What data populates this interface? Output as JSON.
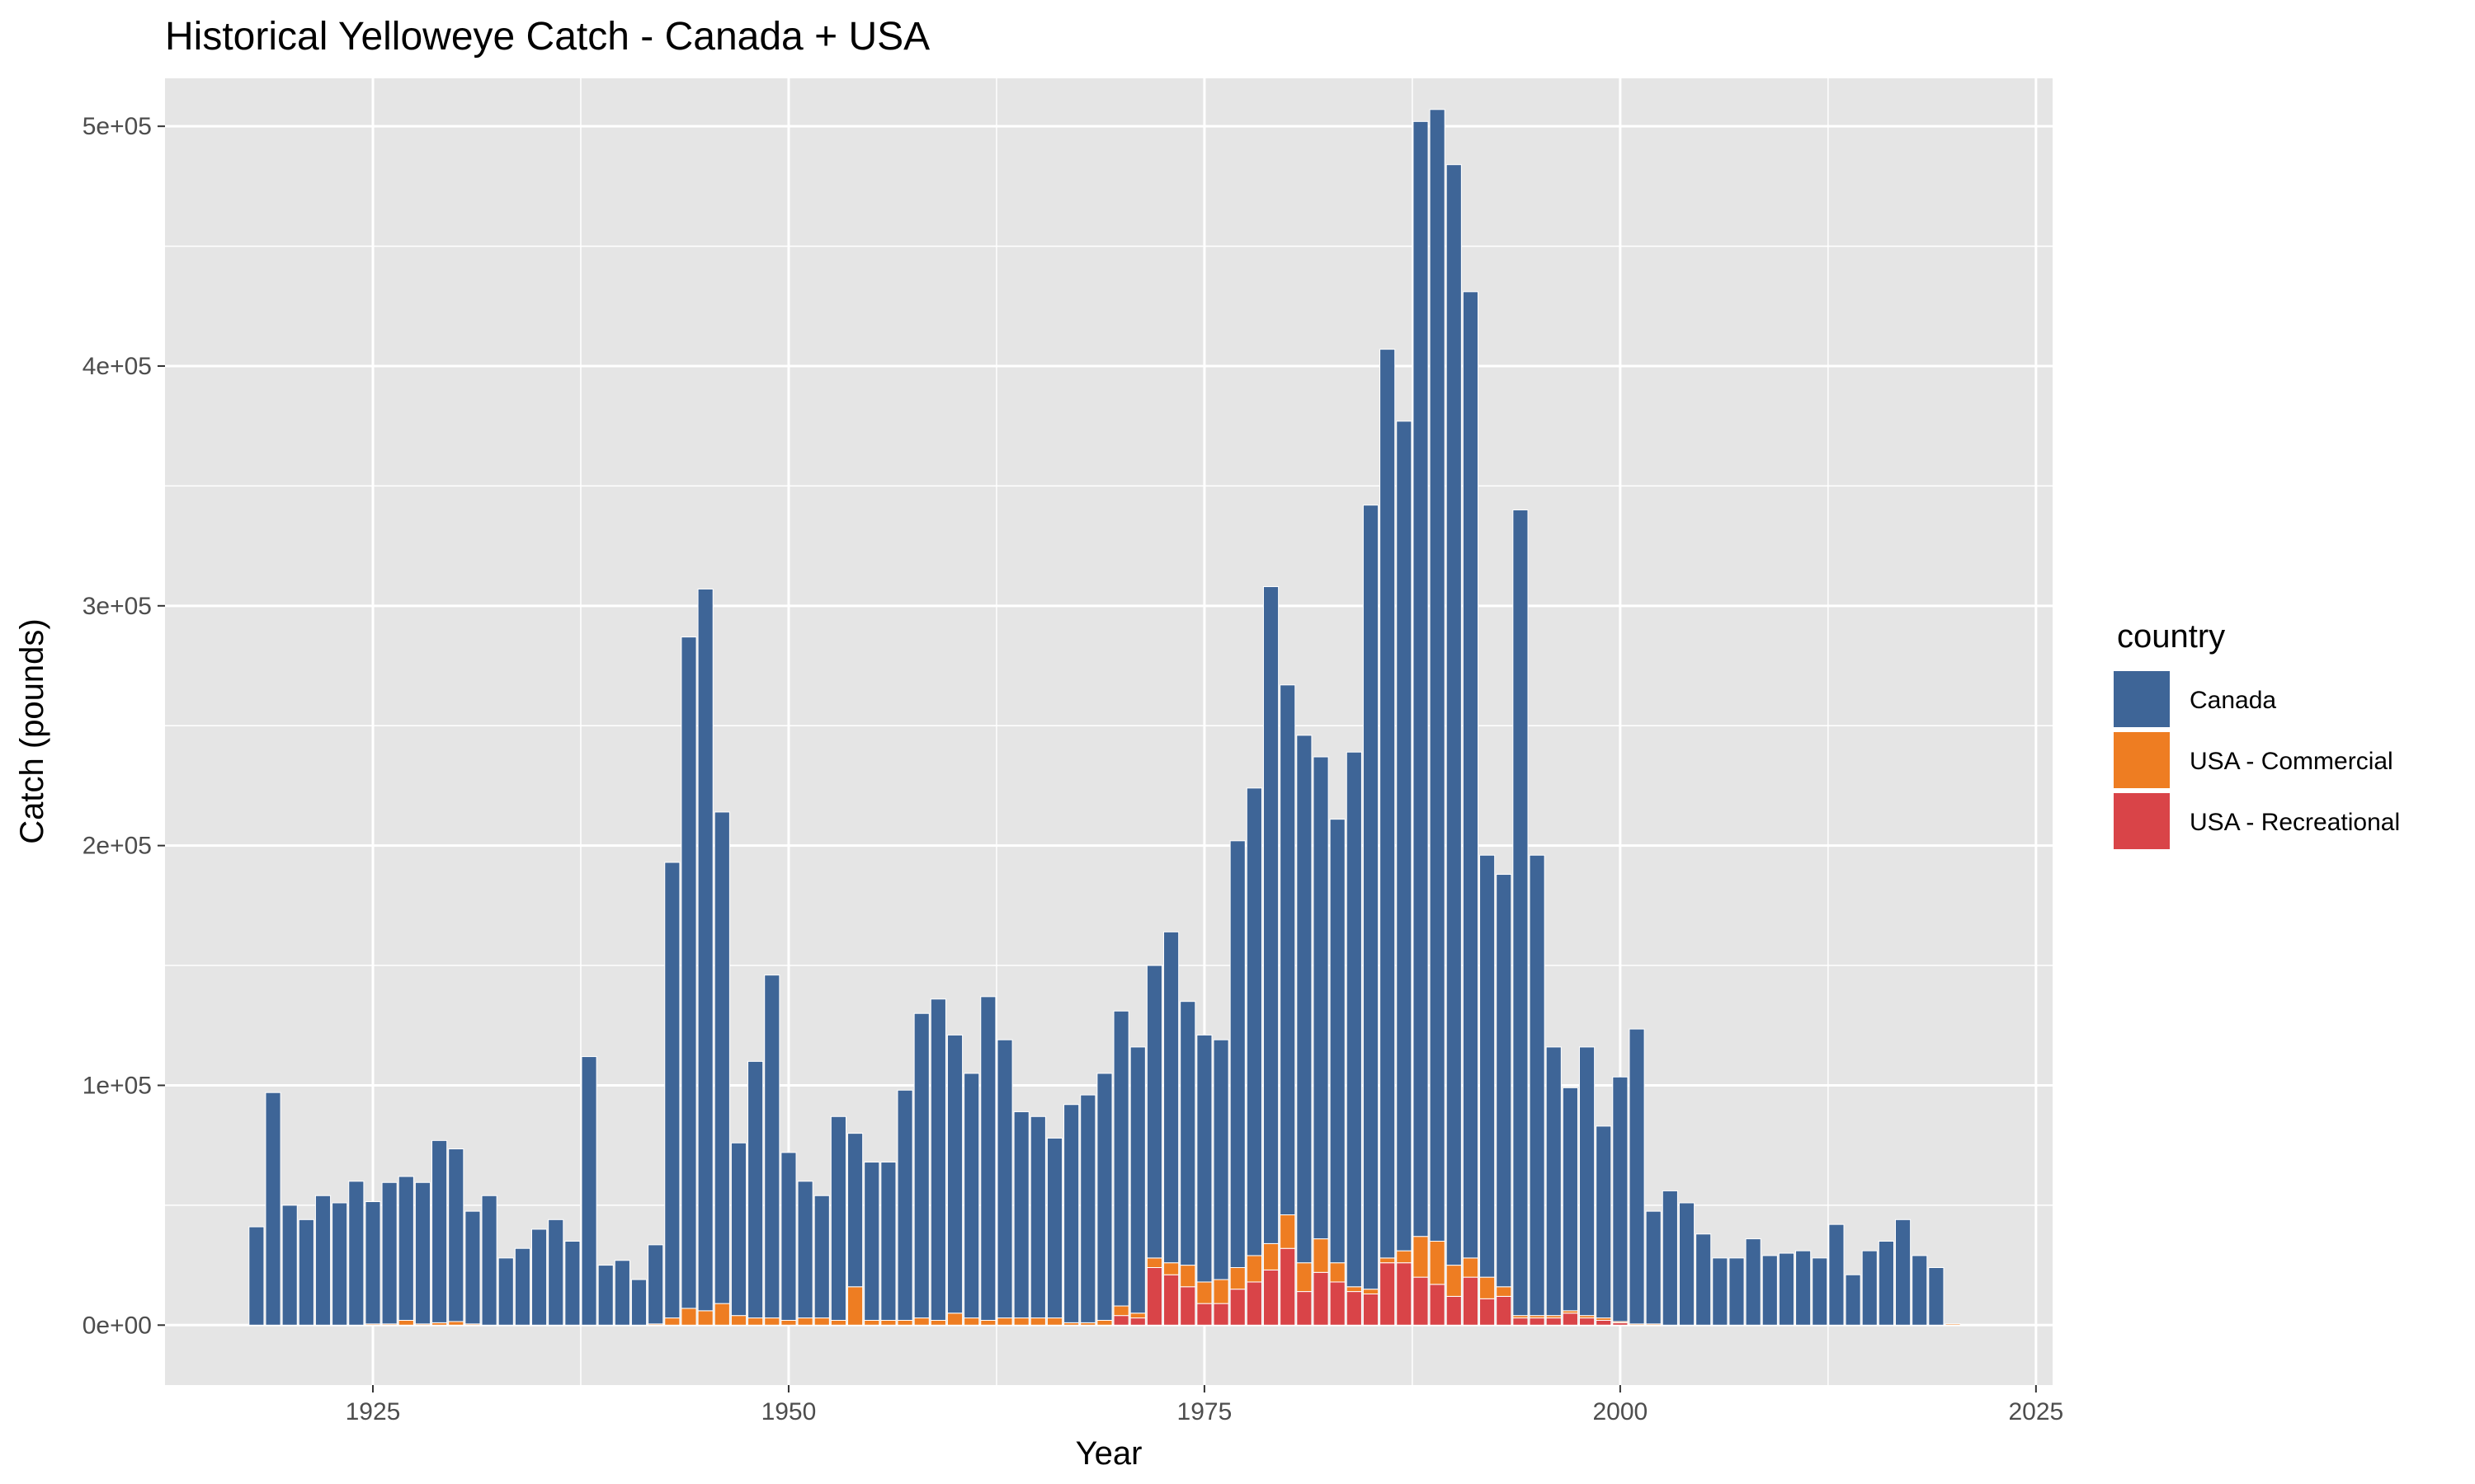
{
  "chart_data": {
    "type": "bar",
    "stacked": true,
    "title": "Historical Yelloweye Catch - Canada + USA",
    "xlabel": "Year",
    "ylabel": "Catch (pounds)",
    "xlim": [
      1912.5,
      2026
    ],
    "ylim": [
      -25000,
      520000
    ],
    "x_ticks": [
      1925,
      1950,
      1975,
      2000,
      2025
    ],
    "x_tick_labels": [
      "1925",
      "1950",
      "1975",
      "2000",
      "2025"
    ],
    "y_ticks": [
      0,
      100000,
      200000,
      300000,
      400000,
      500000
    ],
    "y_tick_labels": [
      "0e+00",
      "1e+05",
      "2e+05",
      "3e+05",
      "4e+05",
      "5e+05"
    ],
    "grid": true,
    "legend": {
      "title": "country",
      "position": "right"
    },
    "colors": {
      "Canada": "#3e6597",
      "USA - Commercial": "#ee7d22",
      "USA - Recreational": "#d94448",
      "panel": "#e5e5e5",
      "grid": "#ffffff"
    },
    "stack_order": [
      "USA - Recreational",
      "USA - Commercial",
      "Canada"
    ],
    "years": [
      1918,
      1919,
      1920,
      1921,
      1922,
      1923,
      1924,
      1925,
      1926,
      1927,
      1928,
      1929,
      1930,
      1931,
      1932,
      1933,
      1934,
      1935,
      1936,
      1937,
      1938,
      1939,
      1940,
      1941,
      1942,
      1943,
      1944,
      1945,
      1946,
      1947,
      1948,
      1949,
      1950,
      1951,
      1952,
      1953,
      1954,
      1955,
      1956,
      1957,
      1958,
      1959,
      1960,
      1961,
      1962,
      1963,
      1964,
      1965,
      1966,
      1967,
      1968,
      1969,
      1970,
      1971,
      1972,
      1973,
      1974,
      1975,
      1976,
      1977,
      1978,
      1979,
      1980,
      1981,
      1982,
      1983,
      1984,
      1985,
      1986,
      1987,
      1988,
      1989,
      1990,
      1991,
      1992,
      1993,
      1994,
      1995,
      1996,
      1997,
      1998,
      1999,
      2000,
      2001,
      2002,
      2003,
      2004,
      2005,
      2006,
      2007,
      2008,
      2009,
      2010,
      2011,
      2012,
      2013,
      2014,
      2015,
      2016,
      2017,
      2018,
      2019,
      2020
    ],
    "series": [
      {
        "name": "Canada",
        "values": [
          41000,
          97000,
          50000,
          44000,
          54000,
          51000,
          60000,
          51000,
          59000,
          60000,
          59000,
          76000,
          72000,
          47000,
          54000,
          28000,
          32000,
          40000,
          44000,
          35000,
          112000,
          25000,
          27000,
          19000,
          33000,
          190000,
          280000,
          301000,
          205000,
          72000,
          107000,
          143000,
          70000,
          57000,
          51000,
          85000,
          64000,
          66000,
          66000,
          96000,
          127000,
          134000,
          116000,
          102000,
          135000,
          116000,
          86000,
          84000,
          75000,
          91000,
          95000,
          103000,
          123000,
          111000,
          122000,
          138000,
          110000,
          103000,
          100000,
          178000,
          195000,
          274000,
          221000,
          220000,
          201000,
          185000,
          223000,
          327000,
          379000,
          346000,
          465000,
          472000,
          459000,
          403000,
          176000,
          172000,
          336000,
          192000,
          112000,
          93000,
          112000,
          80000,
          102000,
          123000,
          47000,
          56000,
          51000,
          38000,
          28000,
          28000,
          36000,
          29000,
          30000,
          31000,
          28000,
          42000,
          21000,
          31000,
          35000,
          44000,
          29000,
          24000,
          0
        ]
      },
      {
        "name": "USA - Commercial",
        "values": [
          0,
          0,
          0,
          0,
          0,
          0,
          0,
          500,
          500,
          2000,
          500,
          1000,
          1500,
          500,
          0,
          0,
          0,
          0,
          0,
          0,
          0,
          0,
          0,
          0,
          500,
          3000,
          7000,
          6000,
          9000,
          4000,
          3000,
          3000,
          2000,
          3000,
          3000,
          2000,
          16000,
          2000,
          2000,
          2000,
          3000,
          2000,
          5000,
          3000,
          2000,
          3000,
          3000,
          3000,
          3000,
          1000,
          1000,
          2000,
          4000,
          2000,
          4000,
          5000,
          9000,
          9000,
          10000,
          9000,
          11000,
          11000,
          14000,
          12000,
          14000,
          8000,
          2000,
          2000,
          2000,
          5000,
          17000,
          18000,
          13000,
          8000,
          9000,
          4000,
          1000,
          1000,
          1000,
          1000,
          1000,
          1000,
          500,
          500,
          500,
          0,
          0,
          0,
          0,
          0,
          0,
          0,
          0,
          0,
          0,
          0,
          0,
          0,
          0,
          0,
          0,
          0,
          500
        ]
      },
      {
        "name": "USA - Recreational",
        "values": [
          0,
          0,
          0,
          0,
          0,
          0,
          0,
          0,
          0,
          0,
          0,
          0,
          0,
          0,
          0,
          0,
          0,
          0,
          0,
          0,
          0,
          0,
          0,
          0,
          0,
          0,
          0,
          0,
          0,
          0,
          0,
          0,
          0,
          0,
          0,
          0,
          0,
          0,
          0,
          0,
          0,
          0,
          0,
          0,
          0,
          0,
          0,
          0,
          0,
          0,
          0,
          0,
          4000,
          3000,
          24000,
          21000,
          16000,
          9000,
          9000,
          15000,
          18000,
          23000,
          32000,
          14000,
          22000,
          18000,
          14000,
          13000,
          26000,
          26000,
          20000,
          17000,
          12000,
          20000,
          11000,
          12000,
          3000,
          3000,
          3000,
          5000,
          3000,
          2000,
          1000,
          0,
          0,
          0,
          0,
          0,
          0,
          0,
          0,
          0,
          0,
          0,
          0,
          0,
          0,
          0,
          0,
          0,
          0,
          0,
          0
        ]
      }
    ]
  }
}
